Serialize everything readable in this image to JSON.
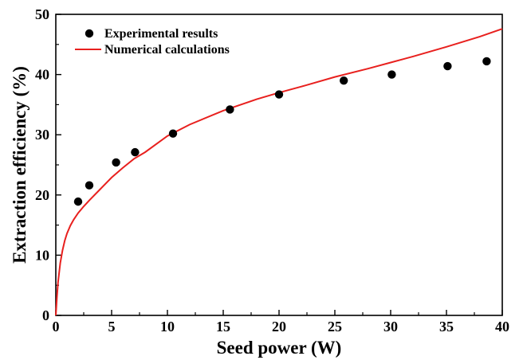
{
  "chart_data": {
    "type": "scatter",
    "xlabel": "Seed power (W)",
    "ylabel": "Extraction efficiency (%)",
    "xlim": [
      0,
      40
    ],
    "ylim": [
      0,
      50
    ],
    "x_ticks": [
      0,
      5,
      10,
      15,
      20,
      25,
      30,
      35,
      40
    ],
    "y_ticks": [
      0,
      10,
      20,
      30,
      40,
      50
    ],
    "grid": false,
    "legend_position": "top-left",
    "series": [
      {
        "name": "Experimental results",
        "kind": "scatter",
        "color": "#000000",
        "x": [
          2.0,
          3.0,
          5.4,
          7.1,
          10.5,
          15.6,
          20.0,
          25.8,
          30.1,
          35.1,
          38.6
        ],
        "y": [
          18.9,
          21.6,
          25.4,
          27.1,
          30.2,
          34.2,
          36.7,
          39.0,
          40.0,
          41.4,
          42.2
        ]
      },
      {
        "name": "Numerical calculations",
        "kind": "line",
        "color": "#e8201e",
        "x": [
          0,
          0.1,
          0.2,
          0.4,
          0.6,
          0.8,
          1.0,
          1.3,
          1.6,
          2.0,
          2.5,
          3.0,
          4.0,
          5.0,
          6.0,
          7.0,
          8.0,
          10.0,
          12.0,
          15.0,
          18.0,
          20.0,
          22.0,
          25.0,
          28.0,
          30.0,
          32.0,
          35.0,
          38.0,
          40.0
        ],
        "y": [
          0,
          3.0,
          5.5,
          8.7,
          10.8,
          12.4,
          13.6,
          14.9,
          15.9,
          17.0,
          18.1,
          19.1,
          21.0,
          22.9,
          24.5,
          26.0,
          27.1,
          29.8,
          31.7,
          34.0,
          35.9,
          37.0,
          38.0,
          39.6,
          41.0,
          42.0,
          43.0,
          44.6,
          46.3,
          47.6
        ]
      }
    ]
  }
}
